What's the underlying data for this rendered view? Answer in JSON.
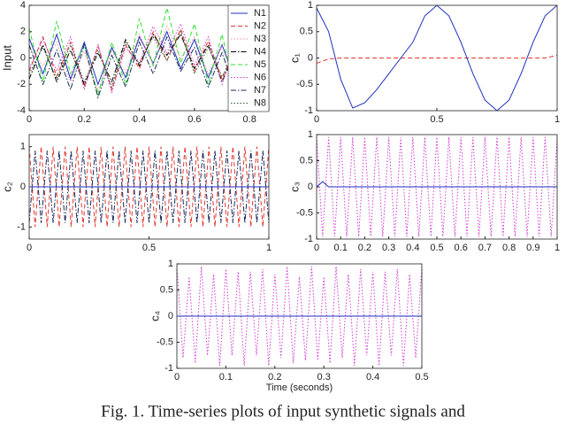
{
  "chart_data": [
    {
      "type": "line",
      "ylabel": "Input",
      "xlim": [
        0,
        0.87
      ],
      "xticks": [
        0,
        0.2,
        0.4,
        0.6,
        0.8
      ],
      "ylim": [
        -4,
        4
      ],
      "yticks": [
        -4,
        -2,
        0,
        2,
        4
      ],
      "legend": "upper right",
      "x": [
        0,
        0.05,
        0.1,
        0.15,
        0.2,
        0.25,
        0.3,
        0.35,
        0.4,
        0.45,
        0.5,
        0.55,
        0.6,
        0.65,
        0.7,
        0.75,
        0.8,
        0.85
      ],
      "series": [
        {
          "name": "N1",
          "color": "#1f2fbf",
          "style": "solid",
          "values": [
            1.5,
            -1.2,
            1.8,
            -1.6,
            1.2,
            -2.0,
            0.8,
            -1.5,
            1.6,
            -0.4,
            2.0,
            -0.8,
            1.4,
            -1.5,
            1.0,
            -1.8,
            1.3,
            -1.2
          ]
        },
        {
          "name": "N2",
          "color": "#e0382f",
          "style": "dashed",
          "values": [
            -1.0,
            1.6,
            -1.4,
            1.2,
            -2.2,
            0.9,
            -2.4,
            1.0,
            -0.8,
            2.0,
            -0.2,
            2.2,
            -1.0,
            1.3,
            -1.6,
            1.0,
            -1.4,
            1.5
          ]
        },
        {
          "name": "N3",
          "color": "#f08fa0",
          "style": "dotted",
          "values": [
            0.8,
            -0.6,
            1.2,
            -1.8,
            0.5,
            -2.5,
            0.6,
            -1.2,
            1.8,
            -0.5,
            2.4,
            0.0,
            1.6,
            -1.2,
            0.9,
            -2.0,
            1.0,
            -0.8
          ]
        },
        {
          "name": "N4",
          "color": "#000000",
          "style": "dashdot",
          "values": [
            -1.6,
            1.0,
            -1.8,
            0.6,
            -2.0,
            0.4,
            -1.8,
            1.4,
            -0.6,
            1.8,
            0.2,
            1.8,
            -0.8,
            1.0,
            -1.8,
            0.6,
            -1.6,
            1.0
          ]
        },
        {
          "name": "N5",
          "color": "#2ee02e",
          "style": "dashed",
          "values": [
            2.2,
            -1.8,
            2.8,
            -1.2,
            1.0,
            -2.8,
            1.2,
            -2.0,
            3.0,
            -0.6,
            3.8,
            -0.4,
            2.6,
            -2.0,
            1.8,
            -2.8,
            1.6,
            -2.0
          ]
        },
        {
          "name": "N6",
          "color": "#d23ad2",
          "style": "dotted",
          "values": [
            -0.8,
            1.4,
            -1.0,
            1.6,
            -2.4,
            1.0,
            -2.6,
            0.8,
            -0.4,
            2.4,
            0.4,
            2.6,
            -0.6,
            1.6,
            -2.0,
            1.2,
            -1.8,
            1.2
          ]
        },
        {
          "name": "N7",
          "color": "#1a2a5a",
          "style": "dashdot",
          "values": [
            1.0,
            -2.0,
            0.6,
            -2.4,
            1.0,
            -3.0,
            0.2,
            -2.2,
            1.2,
            -1.2,
            1.6,
            -1.0,
            0.8,
            -2.2,
            0.4,
            -2.6,
            0.6,
            -1.8
          ]
        },
        {
          "name": "N8",
          "color": "#2a5a2a",
          "style": "dotted",
          "values": [
            -1.2,
            0.8,
            -1.6,
            1.0,
            -1.8,
            0.6,
            -2.2,
            1.2,
            -0.4,
            1.6,
            -0.2,
            2.0,
            -1.2,
            0.8,
            -1.4,
            0.4,
            -1.2,
            0.8
          ]
        }
      ]
    },
    {
      "type": "line",
      "ylabel": "c₁",
      "xlim": [
        0,
        1
      ],
      "xticks": [
        0,
        0.5,
        1
      ],
      "ylim": [
        -1,
        1
      ],
      "yticks": [
        -1,
        -0.5,
        0,
        0.5,
        1
      ],
      "x": [
        0,
        0.05,
        0.1,
        0.15,
        0.2,
        0.25,
        0.3,
        0.35,
        0.4,
        0.45,
        0.5,
        0.55,
        0.6,
        0.65,
        0.7,
        0.75,
        0.8,
        0.85,
        0.9,
        0.95,
        1
      ],
      "series": [
        {
          "color": "#e0382f",
          "style": "dashed",
          "values": [
            -0.1,
            -0.02,
            0,
            0,
            0,
            0,
            0,
            0,
            0,
            0,
            0,
            0,
            0,
            0,
            0,
            0,
            0,
            0,
            0,
            0,
            0.05
          ]
        },
        {
          "color": "#1f2fbf",
          "style": "solid",
          "values": [
            0.95,
            0.5,
            -0.4,
            -0.95,
            -0.85,
            -0.6,
            -0.3,
            0.0,
            0.3,
            0.8,
            1.0,
            0.8,
            0.3,
            -0.3,
            -0.8,
            -1.0,
            -0.8,
            -0.3,
            0.3,
            0.8,
            1.0
          ]
        }
      ]
    },
    {
      "type": "line",
      "ylabel": "c₂",
      "xlim": [
        0,
        1
      ],
      "xticks": [
        0,
        0.5,
        1
      ],
      "ylim": [
        -1.3,
        1.3
      ],
      "yticks": [
        -1,
        0,
        1
      ],
      "x": [
        0,
        0.025,
        0.05,
        0.075,
        0.1,
        0.125,
        0.15,
        0.175,
        0.2,
        0.225,
        0.25,
        0.275,
        0.3,
        0.325,
        0.35,
        0.375,
        0.4,
        0.425,
        0.45,
        0.475,
        0.5,
        0.525,
        0.55,
        0.575,
        0.6,
        0.625,
        0.65,
        0.675,
        0.7,
        0.725,
        0.75,
        0.775,
        0.8,
        0.825,
        0.85,
        0.875,
        0.9,
        0.925,
        0.95,
        0.975,
        1
      ],
      "series": [
        {
          "color": "#e0382f",
          "style": "dashed",
          "values": [
            1,
            -1,
            1,
            -1,
            1,
            -1,
            1,
            -1,
            1,
            -1,
            1,
            -1,
            1,
            -1,
            1,
            -1,
            1,
            -1,
            1,
            -1,
            1,
            -1,
            1,
            -1,
            1,
            -1,
            1,
            -1,
            1,
            -1,
            1,
            -1,
            1,
            -1,
            1,
            -1,
            1,
            -1,
            1,
            -1,
            1
          ]
        },
        {
          "color": "#1a2a5a",
          "style": "dashdot",
          "values": [
            -0.9,
            0.9,
            -0.9,
            0.9,
            -0.9,
            0.9,
            -0.9,
            0.9,
            -0.9,
            0.9,
            -0.9,
            0.9,
            -0.9,
            0.9,
            -0.9,
            0.9,
            -0.9,
            0.9,
            -0.9,
            0.9,
            -0.9,
            0.9,
            -0.9,
            0.9,
            -0.9,
            0.9,
            -0.9,
            0.9,
            -0.9,
            0.9,
            -0.9,
            0.9,
            -0.9,
            0.9,
            -0.9,
            0.9,
            -0.9,
            0.9,
            -0.9,
            0.9,
            -0.9
          ]
        },
        {
          "color": "#1f2fbf",
          "style": "solid",
          "values": [
            0,
            0,
            0,
            0,
            0,
            0,
            0,
            0,
            0,
            0,
            0,
            0,
            0,
            0,
            0,
            0,
            0,
            0,
            0,
            0,
            0,
            0,
            0,
            0,
            0,
            0,
            0,
            0,
            0,
            0,
            0,
            0,
            0,
            0,
            0,
            0,
            0,
            0,
            0,
            0,
            0
          ]
        }
      ]
    },
    {
      "type": "line",
      "ylabel": "c₃",
      "xlim": [
        0,
        1
      ],
      "xticks": [
        0,
        0.1,
        0.2,
        0.3,
        0.4,
        0.5,
        0.6,
        0.7,
        0.8,
        0.9,
        1
      ],
      "ylim": [
        -1,
        1
      ],
      "yticks": [
        -1,
        -0.5,
        0,
        0.5,
        1
      ],
      "x": [
        0,
        0.025,
        0.05,
        0.075,
        0.1,
        0.125,
        0.15,
        0.175,
        0.2,
        0.225,
        0.25,
        0.275,
        0.3,
        0.325,
        0.35,
        0.375,
        0.4,
        0.425,
        0.45,
        0.475,
        0.5,
        0.525,
        0.55,
        0.575,
        0.6,
        0.625,
        0.65,
        0.675,
        0.7,
        0.725,
        0.75,
        0.775,
        0.8,
        0.825,
        0.85,
        0.875,
        0.9,
        0.925,
        0.95,
        0.975,
        1
      ],
      "series": [
        {
          "color": "#d23ad2",
          "style": "dotted",
          "values": [
            0.95,
            -0.95,
            0.95,
            -0.95,
            0.95,
            -0.95,
            0.95,
            -0.95,
            0.95,
            -0.95,
            0.95,
            -0.95,
            0.95,
            -0.95,
            0.95,
            -0.95,
            0.95,
            -0.95,
            0.95,
            -0.95,
            0.95,
            -0.95,
            0.95,
            -0.95,
            0.95,
            -0.95,
            0.95,
            -0.95,
            0.95,
            -0.95,
            0.95,
            -0.95,
            0.95,
            -0.95,
            0.95,
            -0.95,
            0.95,
            -0.95,
            0.95,
            -0.95,
            0.95
          ]
        },
        {
          "color": "#1f2fbf",
          "style": "solid",
          "values": [
            0,
            0.1,
            0,
            0,
            0,
            0,
            0,
            0,
            0,
            0,
            0,
            0,
            0,
            0,
            0,
            0,
            0,
            0,
            0,
            0,
            0,
            0,
            0,
            0,
            0,
            0,
            0,
            0,
            0,
            0,
            0,
            0,
            0,
            0,
            0,
            0,
            0,
            0,
            0,
            0,
            0
          ]
        }
      ]
    },
    {
      "type": "line",
      "ylabel": "c₄",
      "xlabel": "Time (seconds)",
      "xlim": [
        0,
        0.5
      ],
      "xticks": [
        0,
        0.1,
        0.2,
        0.3,
        0.4,
        0.5
      ],
      "ylim": [
        -1,
        1
      ],
      "yticks": [
        -1,
        -0.5,
        0,
        0.5,
        1
      ],
      "x": [
        0,
        0.0125,
        0.025,
        0.0375,
        0.05,
        0.0625,
        0.075,
        0.0875,
        0.1,
        0.1125,
        0.125,
        0.1375,
        0.15,
        0.1625,
        0.175,
        0.1875,
        0.2,
        0.2125,
        0.225,
        0.2375,
        0.25,
        0.2625,
        0.275,
        0.2875,
        0.3,
        0.3125,
        0.325,
        0.3375,
        0.35,
        0.3625,
        0.375,
        0.3875,
        0.4,
        0.4125,
        0.425,
        0.4375,
        0.45,
        0.4625,
        0.475,
        0.4875,
        0.5
      ],
      "series": [
        {
          "color": "#d23ad2",
          "style": "dotted",
          "values": [
            0.95,
            -0.8,
            0.75,
            -0.9,
            0.95,
            -0.75,
            0.8,
            -0.95,
            0.9,
            -0.75,
            0.85,
            -0.95,
            0.85,
            -0.75,
            0.9,
            -0.95,
            0.8,
            -0.8,
            0.95,
            -0.9,
            0.75,
            -0.85,
            0.95,
            -0.85,
            0.75,
            -0.9,
            0.95,
            -0.8,
            0.8,
            -0.95,
            0.9,
            -0.75,
            0.85,
            -0.95,
            0.85,
            -0.75,
            0.9,
            -0.95,
            0.8,
            -0.8,
            0.95
          ]
        },
        {
          "color": "#1f2fbf",
          "style": "solid",
          "values": [
            0,
            0,
            0,
            0,
            0,
            0,
            0,
            0,
            0,
            0,
            0,
            0,
            0,
            0,
            0,
            0,
            0,
            0,
            0,
            0,
            0,
            0,
            0,
            0,
            0,
            0,
            0,
            0,
            0,
            0,
            0,
            0,
            0,
            0,
            0,
            0,
            0,
            0,
            0,
            0,
            0
          ]
        }
      ]
    }
  ],
  "caption": "Fig. 1. Time-series plots of input synthetic signals and"
}
